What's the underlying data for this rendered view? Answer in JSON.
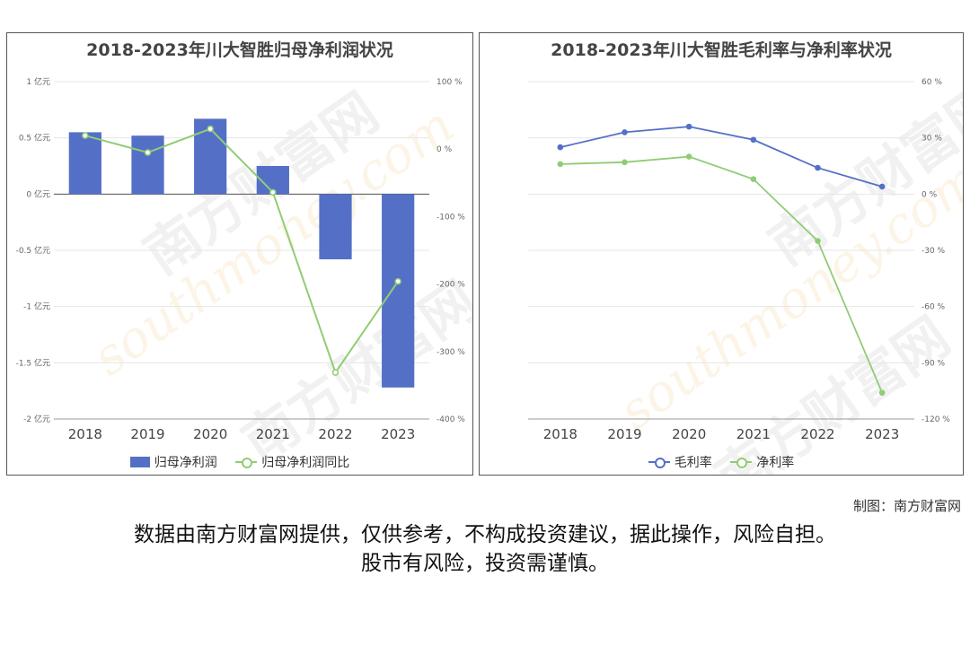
{
  "charts": [
    {
      "id": "left",
      "title": "2018-2023年川大智胜归母净利润状况",
      "legend": [
        "归母净利润",
        "归母净利润同比"
      ]
    },
    {
      "id": "right",
      "title": "2018-2023年川大智胜毛利率与净利率状况",
      "legend": [
        "毛利率",
        "净利率"
      ]
    }
  ],
  "credit": "制图：南方财富网",
  "disclaimer": [
    "数据由南方财富网提供，仅供参考，不构成投资建议，据此操作，风险自担。",
    "股市有风险，投资需谨慎。"
  ],
  "watermark": {
    "cn": "南方财富网",
    "en": "southmoney.com"
  },
  "chart_data": [
    {
      "type": "bar",
      "title": "2018-2023年川大智胜归母净利润状况",
      "categories": [
        "2018",
        "2019",
        "2020",
        "2021",
        "2022",
        "2023"
      ],
      "series": [
        {
          "name": "归母净利润",
          "type": "bar",
          "axis": "left",
          "color": "#5470c6",
          "values": [
            0.55,
            0.52,
            0.67,
            0.25,
            -0.58,
            -1.72
          ]
        },
        {
          "name": "归母净利润同比",
          "type": "line",
          "axis": "right",
          "color": "#91cc75",
          "values": [
            20,
            -5,
            30,
            -64,
            -331,
            -196
          ]
        }
      ],
      "y_left": {
        "ticks": [
          "1 亿元",
          "0.5 亿元",
          "0 亿元",
          "-0.5 亿元",
          "-1 亿元",
          "-1.5 亿元",
          "-2 亿元"
        ],
        "range": [
          -2,
          1
        ]
      },
      "y_right": {
        "ticks": [
          "100 %",
          "0 %",
          "-100 %",
          "-200 %",
          "-300 %",
          "-400 %"
        ],
        "range": [
          -400,
          100
        ]
      }
    },
    {
      "type": "line",
      "title": "2018-2023年川大智胜毛利率与净利率状况",
      "categories": [
        "2018",
        "2019",
        "2020",
        "2021",
        "2022",
        "2023"
      ],
      "series": [
        {
          "name": "毛利率",
          "color": "#5470c6",
          "values": [
            25,
            33,
            36,
            29,
            14,
            4
          ]
        },
        {
          "name": "净利率",
          "color": "#91cc75",
          "values": [
            16,
            17,
            20,
            8,
            -25,
            -106
          ]
        }
      ],
      "y_right": {
        "ticks": [
          "60 %",
          "30 %",
          "0 %",
          "-30 %",
          "-60 %",
          "-90 %",
          "-120 %"
        ],
        "range": [
          -120,
          60
        ]
      }
    }
  ]
}
